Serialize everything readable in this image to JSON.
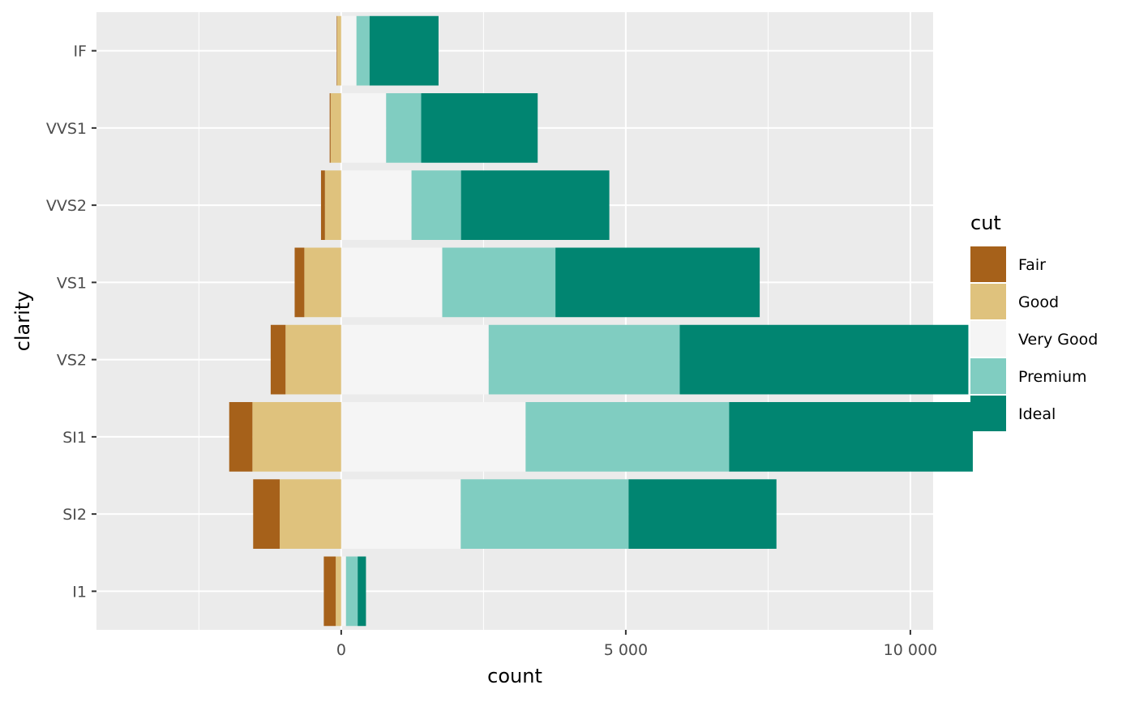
{
  "chart_data": {
    "type": "bar",
    "orientation": "horizontal",
    "stacking": "diverging",
    "xlabel": "count",
    "ylabel": "clarity",
    "xlim": [
      -4300,
      10400
    ],
    "xticks": [
      0,
      5000,
      10000
    ],
    "xtick_labels": [
      "0",
      "5 000",
      "10 000"
    ],
    "categories": [
      "I1",
      "SI2",
      "SI1",
      "VS2",
      "VS1",
      "VVS2",
      "VVS1",
      "IF"
    ],
    "series": [
      {
        "name": "Fair",
        "color": "#a6611a",
        "values": [
          -210,
          -466,
          -408,
          -261,
          -170,
          -69,
          -17,
          -9
        ]
      },
      {
        "name": "Good",
        "color": "#dfc27d",
        "values": [
          -96,
          -1081,
          -1560,
          -978,
          -648,
          -286,
          -186,
          -71
        ]
      },
      {
        "name": "Very Good",
        "color": "#f5f5f5",
        "values": [
          84,
          2100,
          3240,
          2591,
          1775,
          1235,
          789,
          268
        ]
      },
      {
        "name": "Premium",
        "color": "#80cdc1",
        "values": [
          205,
          2949,
          3575,
          3357,
          1989,
          870,
          616,
          230
        ]
      },
      {
        "name": "Ideal",
        "color": "#018571",
        "values": [
          146,
          2598,
          4282,
          5071,
          3589,
          2606,
          2047,
          1212
        ]
      }
    ],
    "negative_series": [
      "Good",
      "Fair"
    ],
    "positive_series": [
      "Very Good",
      "Premium",
      "Ideal"
    ],
    "legend": {
      "title": "cut",
      "position": "right",
      "items": [
        "Fair",
        "Good",
        "Very Good",
        "Premium",
        "Ideal"
      ]
    },
    "grid": true,
    "panel_background": "#ebebeb",
    "grid_color": "#ffffff"
  }
}
